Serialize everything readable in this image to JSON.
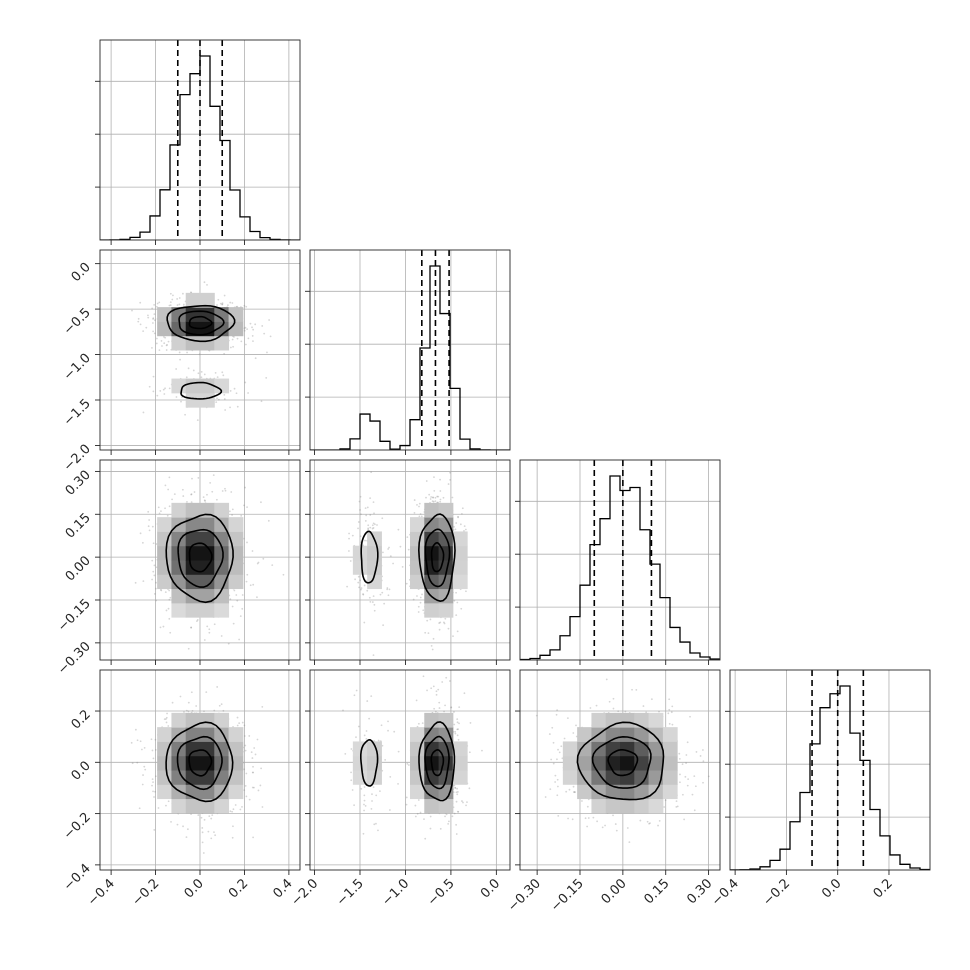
{
  "chart_data": {
    "type": "corner",
    "parameters": [
      {
        "index": 0,
        "distribution": {
          "modes": [
            {
              "mean": 0.0,
              "sd": 0.1,
              "weight": 1.0
            }
          ]
        },
        "quantiles": [
          -0.1,
          0.0,
          0.1
        ],
        "range": [
          -0.45,
          0.45
        ],
        "ticks": [
          -0.4,
          -0.2,
          0.0,
          0.2,
          0.4
        ],
        "tick_labels": [
          "−0.4",
          "−0.2",
          "0.0",
          "0.2",
          "0.4"
        ]
      },
      {
        "index": 1,
        "distribution": {
          "modes": [
            {
              "mean": -0.65,
              "sd": 0.13,
              "weight": 0.86
            },
            {
              "mean": -1.4,
              "sd": 0.1,
              "weight": 0.14
            }
          ]
        },
        "quantiles": [
          -0.82,
          -0.67,
          -0.52
        ],
        "range": [
          -2.05,
          0.15
        ],
        "ticks": [
          -2.0,
          -1.5,
          -1.0,
          -0.5,
          0.0
        ],
        "tick_labels": [
          "−2.0",
          "−1.5",
          "−1.0",
          "−0.5",
          "0.0"
        ]
      },
      {
        "index": 2,
        "distribution": {
          "modes": [
            {
              "mean": 0.0,
              "sd": 0.1,
              "weight": 1.0
            }
          ]
        },
        "quantiles": [
          -0.1,
          0.0,
          0.1
        ],
        "range": [
          -0.36,
          0.34
        ],
        "ticks": [
          -0.3,
          -0.15,
          0.0,
          0.15,
          0.3
        ],
        "tick_labels": [
          "−0.30",
          "−0.15",
          "0.00",
          "0.15",
          "0.30"
        ]
      },
      {
        "index": 3,
        "distribution": {
          "modes": [
            {
              "mean": 0.0,
              "sd": 0.1,
              "weight": 1.0
            }
          ]
        },
        "quantiles": [
          -0.1,
          0.0,
          0.1
        ],
        "range": [
          -0.42,
          0.36
        ],
        "ticks": [
          -0.4,
          -0.2,
          0.0,
          0.2
        ],
        "tick_labels": [
          "−0.4",
          "−0.2",
          "0.0",
          "0.2"
        ]
      }
    ],
    "histogram_bins": 20,
    "contour_levels_sigma": [
      0.5,
      1.0,
      1.5
    ],
    "title": "",
    "xlabel": "",
    "ylabel": "",
    "grid": true,
    "legend": "none"
  }
}
